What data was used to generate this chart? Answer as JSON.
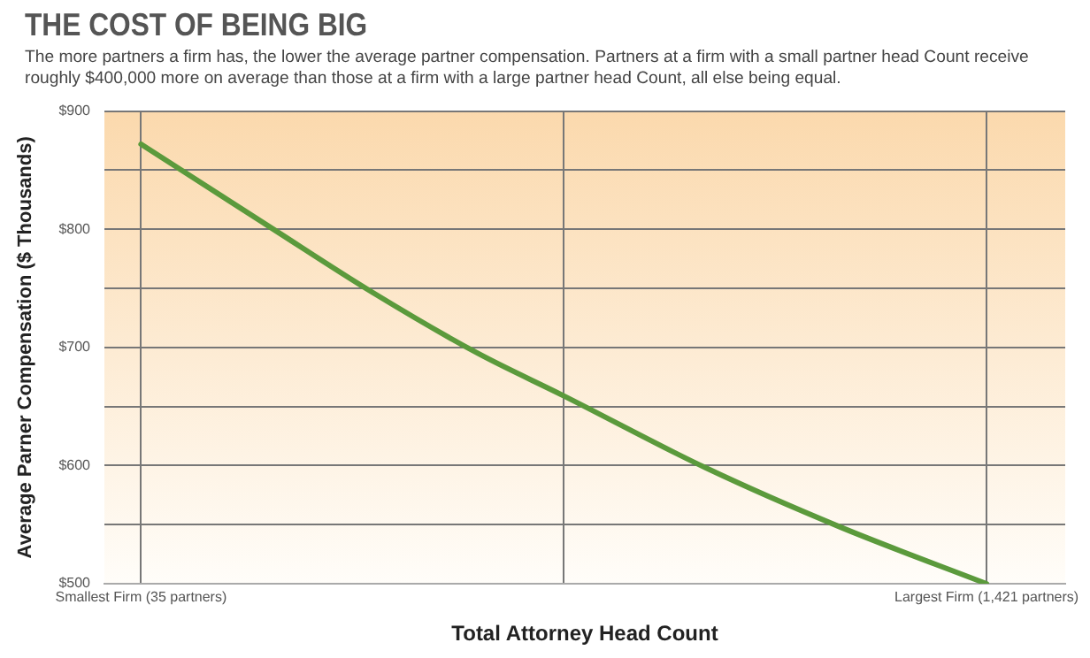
{
  "chart_data": {
    "type": "line",
    "title": "THE COST OF BEING BIG",
    "subtitle": "The more partners a firm has, the lower the average partner compensation. Partners at a firm with a small partner head Count receive roughly $400,000 more on average than those at a firm with a large partner head Count, all else being equal.",
    "xlabel": "Total Attorney Head Count",
    "ylabel": "Average Parner Compensation ($ Thousands)",
    "x": [
      35,
      249,
      413,
      587,
      728,
      961,
      1181,
      1421
    ],
    "series": [
      {
        "color": "#5b9a3c",
        "values": [
          872,
          801,
          747,
          695,
          659,
          598,
          548,
          500
        ]
      }
    ],
    "xlim": [
      -25,
      1550
    ],
    "xticks": [
      {
        "value": 35,
        "label": "Smallest Firm (35 partners)"
      },
      {
        "value": 728,
        "label": null
      },
      {
        "value": 1421,
        "label": "Largest Firm (1,421 partners)"
      }
    ],
    "ylim": [
      500,
      900
    ],
    "yticks": [
      {
        "value": 500,
        "label": "$500"
      },
      {
        "value": 550,
        "label": null
      },
      {
        "value": 600,
        "label": "$600"
      },
      {
        "value": 650,
        "label": null
      },
      {
        "value": 700,
        "label": "$700"
      },
      {
        "value": 750,
        "label": null
      },
      {
        "value": 800,
        "label": "$800"
      },
      {
        "value": 850,
        "label": null
      },
      {
        "value": 900,
        "label": "$900"
      }
    ],
    "grid": true,
    "legend": false,
    "marker": "none",
    "line_style": "solid"
  }
}
